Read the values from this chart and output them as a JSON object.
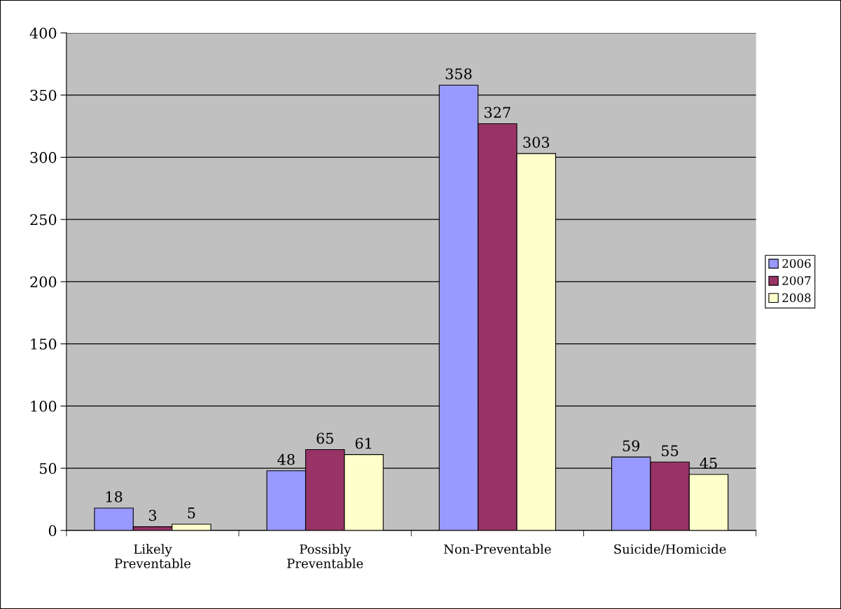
{
  "chart_data": {
    "type": "bar",
    "categories": [
      "Likely\nPreventable",
      "Possibly\nPreventable",
      "Non-Preventable",
      "Suicide/Homicide"
    ],
    "series": [
      {
        "name": "2006",
        "color": "#9999ff",
        "values": [
          18,
          48,
          358,
          59
        ]
      },
      {
        "name": "2007",
        "color": "#993366",
        "values": [
          3,
          65,
          327,
          55
        ]
      },
      {
        "name": "2008",
        "color": "#ffffcc",
        "values": [
          5,
          61,
          303,
          45
        ]
      }
    ],
    "ylim": [
      0,
      400
    ],
    "yticks": [
      0,
      50,
      100,
      150,
      200,
      250,
      300,
      350,
      400
    ],
    "grid": "y",
    "legend": "right",
    "data_labels": true
  }
}
